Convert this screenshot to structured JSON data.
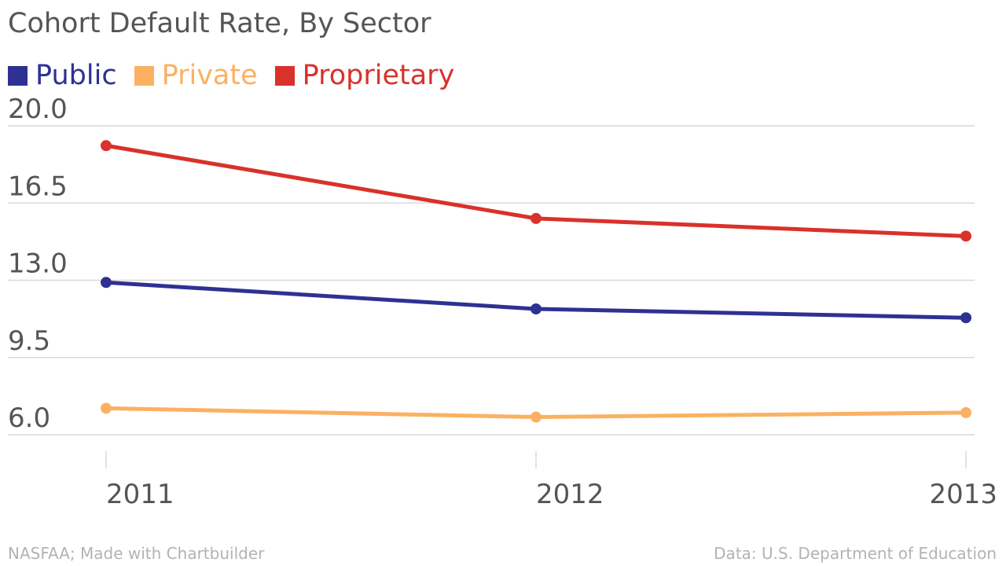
{
  "chart_data": {
    "type": "line",
    "title": "Cohort Default Rate, By Sector",
    "x": [
      "2011",
      "2012",
      "2013"
    ],
    "xlabel": "",
    "ylabel": "",
    "ylim": [
      6.0,
      20.0
    ],
    "yticks": [
      "20.0",
      "16.5",
      "13.0",
      "9.5",
      "6.0"
    ],
    "ytick_values": [
      20.0,
      16.5,
      13.0,
      9.5,
      6.0
    ],
    "grid": true,
    "legend": "top-left",
    "series": [
      {
        "name": "Public",
        "values": [
          12.9,
          11.7,
          11.3
        ],
        "color": "#2e3192"
      },
      {
        "name": "Private",
        "values": [
          7.2,
          6.8,
          7.0
        ],
        "color": "#fbb161"
      },
      {
        "name": "Proprietary",
        "values": [
          19.1,
          15.8,
          15.0
        ],
        "color": "#d9312b"
      }
    ]
  },
  "footer": {
    "source_left": "NASFAA; Made with Chartbuilder",
    "source_right": "Data: U.S. Department of Education"
  },
  "colors": {
    "text": "#555555",
    "grid": "#d9d9d9",
    "footer": "#b3b3b3"
  }
}
